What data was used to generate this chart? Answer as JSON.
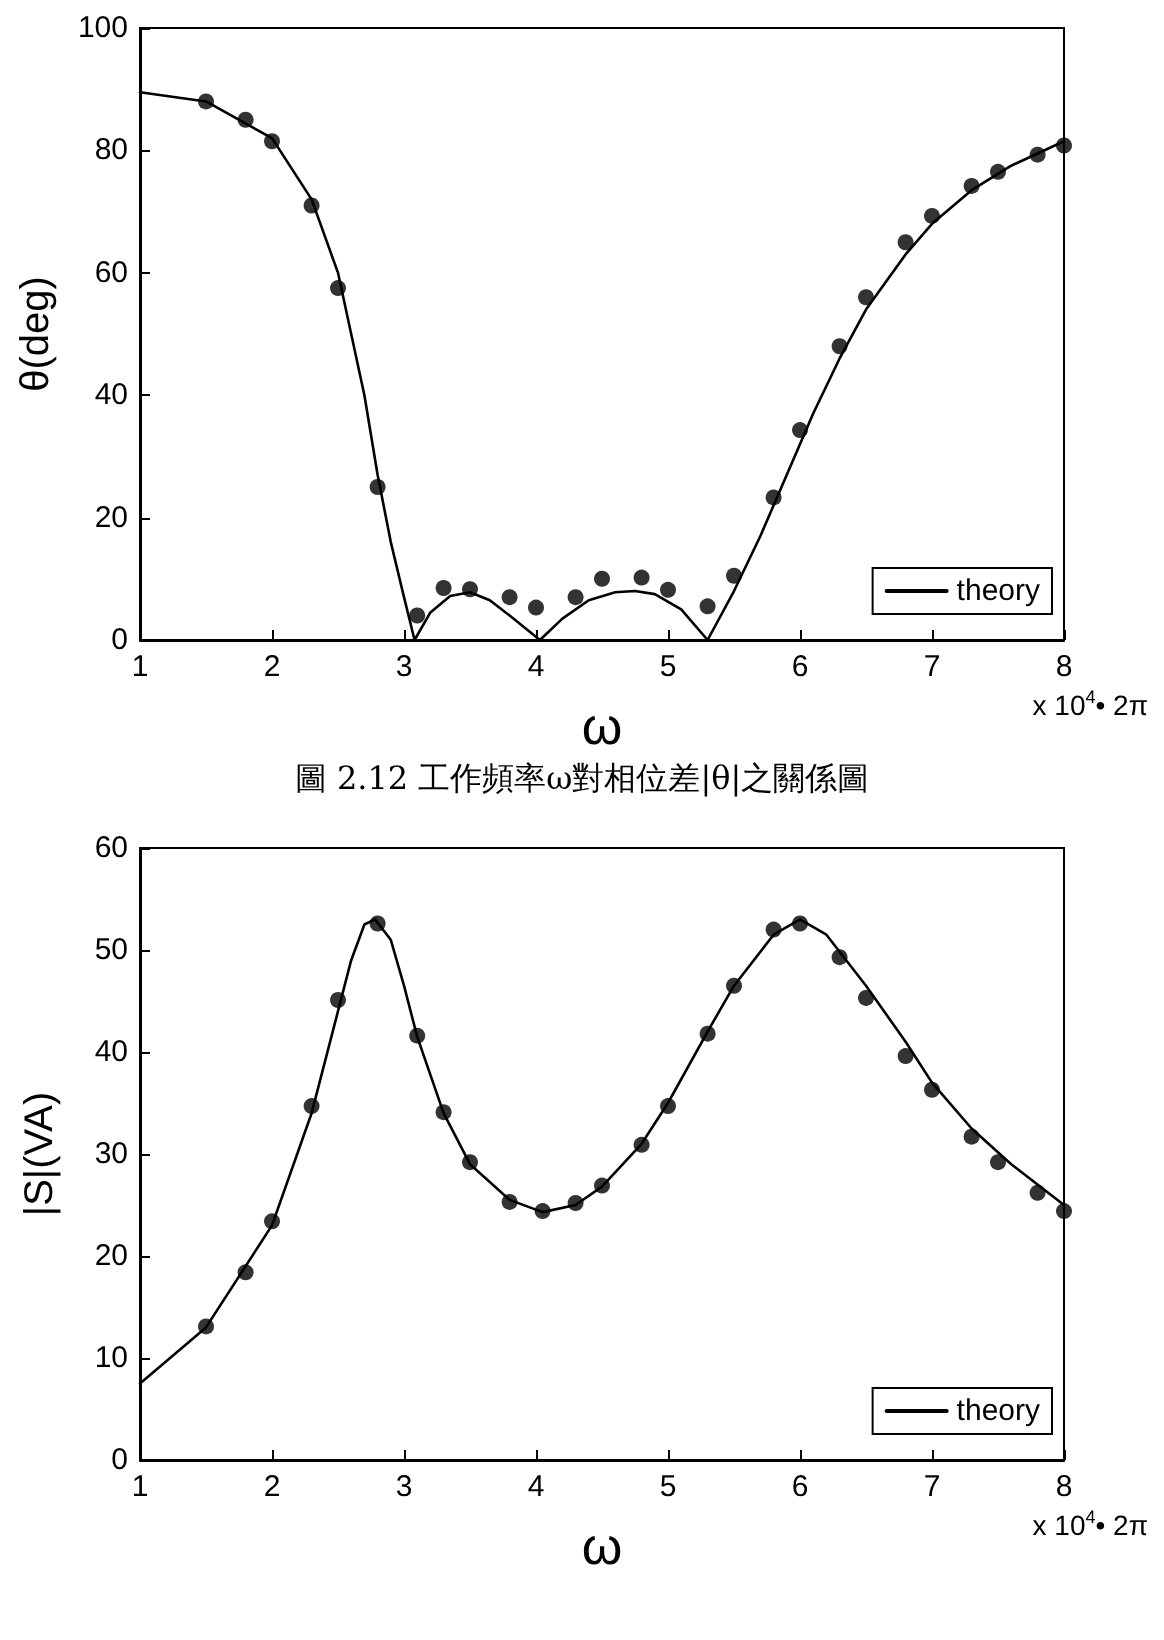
{
  "chart_data": [
    {
      "type": "line",
      "title": "圖 2.12 工作頻率ω對相位差|θ|之關係圖",
      "xlabel": "ω",
      "ylabel": "θ(deg)",
      "annotations": [
        "x 10$^{4}$• 2π"
      ],
      "xlim": [
        1,
        8
      ],
      "xticks": [
        1,
        2,
        3,
        4,
        5,
        6,
        7,
        8
      ],
      "ylim": [
        0,
        100
      ],
      "yticks": [
        0,
        20,
        40,
        60,
        80,
        100
      ],
      "grid": false,
      "legend": "bottom right",
      "series": [
        {
          "name": "theory",
          "color": "#000000",
          "marker": "none",
          "line_style": "solid",
          "x": [
            1,
            1.5,
            2,
            2.3,
            2.5,
            2.7,
            2.8,
            2.9,
            3.0,
            3.08,
            3.2,
            3.35,
            3.5,
            3.65,
            3.8,
            4.03,
            4.2,
            4.4,
            4.6,
            4.75,
            4.9,
            5.1,
            5.3,
            5.5,
            5.7,
            5.9,
            6.1,
            6.3,
            6.5,
            6.8,
            7,
            7.3,
            7.6,
            8
          ],
          "values": [
            89.5,
            88,
            82,
            72,
            60,
            40,
            27,
            16,
            7,
            0,
            4.5,
            7.2,
            7.8,
            6.5,
            4,
            0,
            3.5,
            6.5,
            7.8,
            8,
            7.5,
            5,
            0,
            8,
            17,
            27,
            37,
            46,
            54,
            63,
            68,
            73.5,
            77.5,
            81.5
          ]
        },
        {
          "type": "scatter",
          "color": "#000000",
          "marker": "circle",
          "x": [
            1.5,
            1.8,
            2.0,
            2.3,
            2.5,
            2.8,
            3.1,
            3.3,
            3.5,
            3.8,
            4.0,
            4.3,
            4.5,
            4.8,
            5.0,
            5.3,
            5.5,
            5.8,
            6.0,
            6.3,
            6.5,
            6.8,
            7.0,
            7.3,
            7.5,
            7.8,
            8.0
          ],
          "values": [
            88,
            85,
            81.5,
            71,
            57.5,
            25,
            4,
            8.5,
            8.3,
            7,
            5.3,
            7,
            10,
            10.2,
            8.2,
            5.5,
            10.5,
            23.3,
            34.3,
            48,
            56,
            65,
            69.3,
            74.2,
            76.5,
            79.3,
            80.8
          ]
        }
      ]
    },
    {
      "type": "line",
      "xlabel": "ω",
      "ylabel": "|S|(VA)",
      "annotations": [
        "x 10$^{4}$• 2π"
      ],
      "xlim": [
        1,
        8
      ],
      "xticks": [
        1,
        2,
        3,
        4,
        5,
        6,
        7,
        8
      ],
      "ylim": [
        0,
        60
      ],
      "yticks": [
        0,
        10,
        20,
        30,
        40,
        50,
        60
      ],
      "grid": false,
      "legend": "bottom right",
      "series": [
        {
          "name": "theory",
          "color": "#000000",
          "marker": "none",
          "line_style": "solid",
          "x": [
            1,
            1.5,
            2,
            2.3,
            2.5,
            2.6,
            2.7,
            2.78,
            2.9,
            3.0,
            3.1,
            3.3,
            3.5,
            3.8,
            4.05,
            4.3,
            4.5,
            4.8,
            5,
            5.3,
            5.5,
            5.8,
            6,
            6.2,
            6.5,
            6.8,
            7,
            7.3,
            7.6,
            8
          ],
          "values": [
            7.5,
            13,
            23,
            34,
            44,
            49,
            52.5,
            53,
            51,
            46.5,
            41.5,
            34,
            29,
            25.5,
            24.3,
            25,
            26.8,
            31,
            35,
            42,
            46.5,
            51.5,
            53,
            51.5,
            46.5,
            41,
            37,
            32.5,
            29,
            25
          ]
        },
        {
          "type": "scatter",
          "color": "#000000",
          "marker": "circle",
          "x": [
            1.5,
            1.8,
            2.0,
            2.3,
            2.5,
            2.8,
            3.1,
            3.3,
            3.5,
            3.8,
            4.05,
            4.3,
            4.5,
            4.8,
            5.0,
            5.3,
            5.5,
            5.8,
            6.0,
            6.3,
            6.5,
            6.8,
            7.0,
            7.3,
            7.5,
            7.8,
            8.0
          ],
          "values": [
            13.1,
            18.4,
            23.4,
            34.7,
            45.1,
            52.6,
            41.6,
            34.1,
            29.2,
            25.3,
            24.4,
            25.2,
            26.9,
            30.9,
            34.7,
            41.8,
            46.5,
            52.0,
            52.6,
            49.3,
            45.3,
            39.6,
            36.3,
            31.7,
            29.2,
            26.2,
            24.4
          ]
        }
      ]
    }
  ]
}
